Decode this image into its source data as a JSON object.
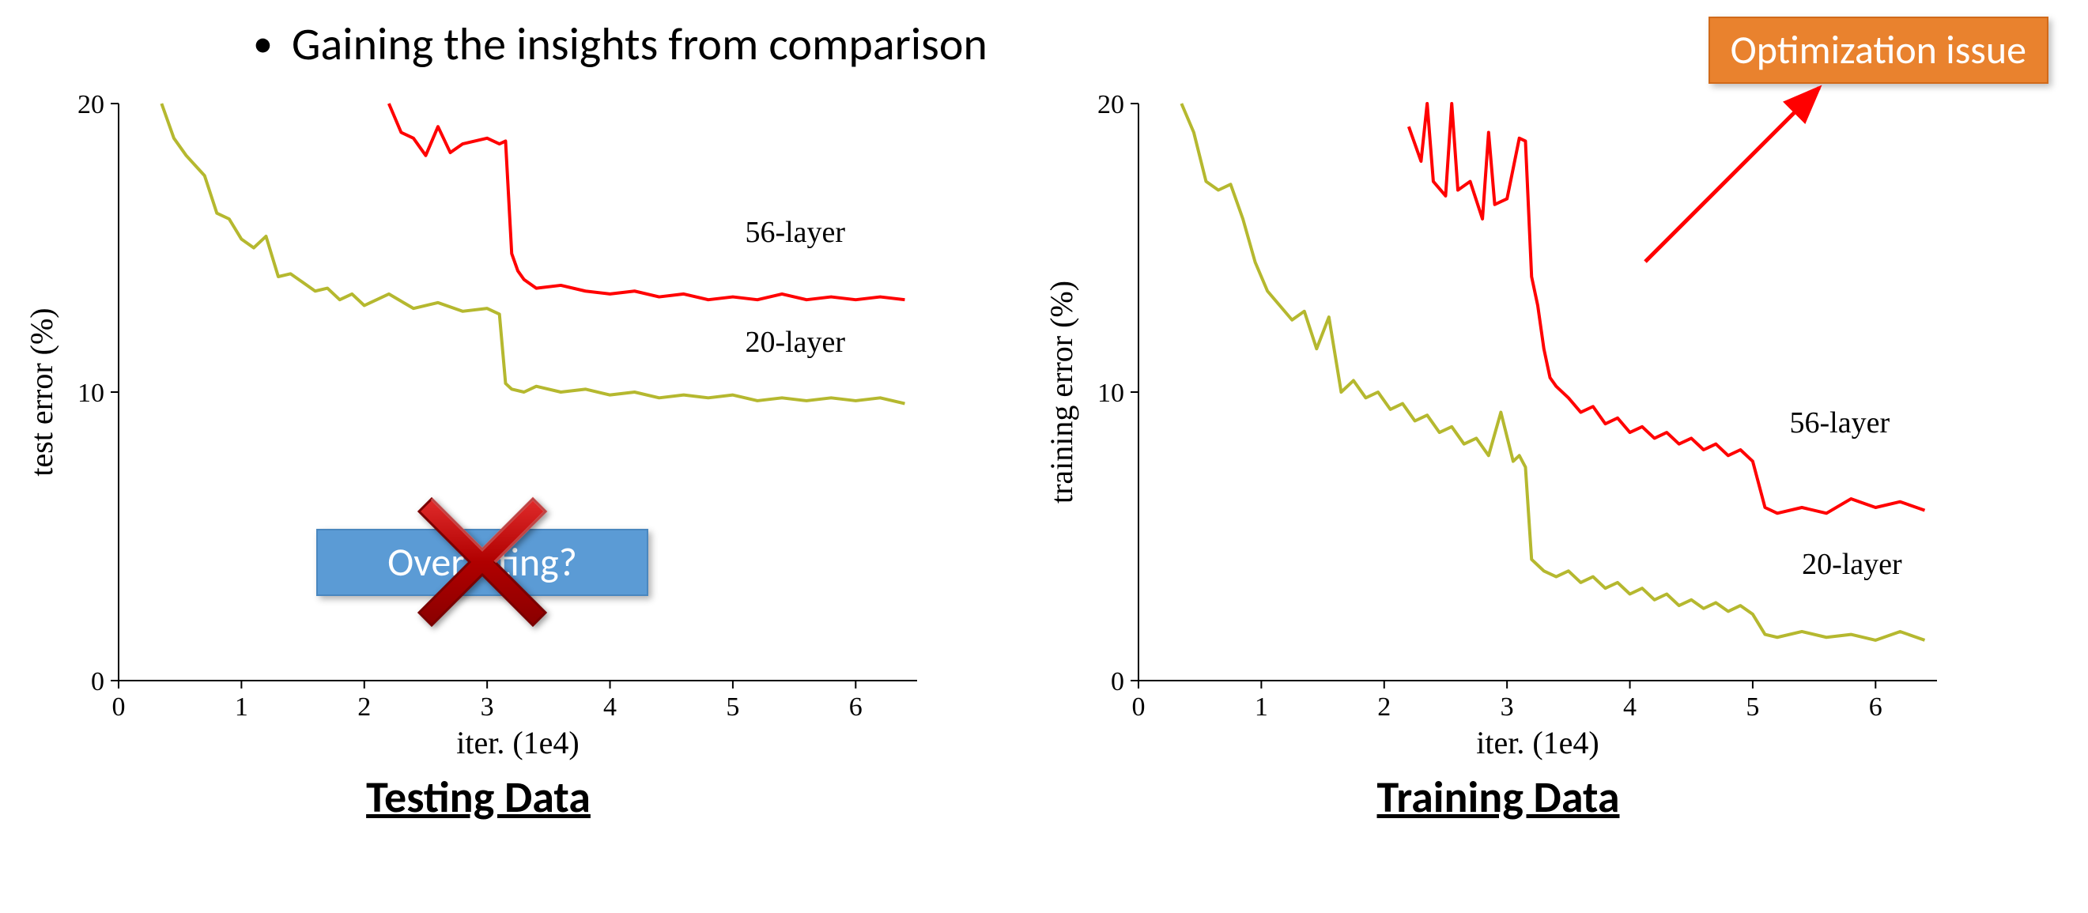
{
  "bullet_text": "Gaining the insights from comparison",
  "callout_text": "Optimization issue",
  "overfit_text": "Overfitting?",
  "colors": {
    "text_black": "#000000",
    "callout_bg": "#e9822e",
    "callout_border": "#d16a1a",
    "callout_text": "#ffffff",
    "overfit_bg": "#5b9bd5",
    "overfit_border": "#4a87bf",
    "overfit_text": "#ffffff",
    "x_mark": "#c00000",
    "arrow": "#ff0000",
    "series_56": "#ff0000",
    "series_20": "#b5b82f",
    "axis": "#000000",
    "background": "#ffffff"
  },
  "left_chart": {
    "type": "line",
    "title": "Testing Data",
    "xlabel": "iter. (1e4)",
    "ylabel": "test error (%)",
    "axis_fontsize": 40,
    "tick_fontsize": 34,
    "xlim": [
      0,
      6.5
    ],
    "ylim": [
      0,
      20
    ],
    "xticks": [
      0,
      1,
      2,
      3,
      4,
      5,
      6
    ],
    "yticks": [
      0,
      10,
      20
    ],
    "series": [
      {
        "name": "56-layer",
        "label": "56-layer",
        "label_pos": {
          "x": 5.1,
          "y": 15.2
        },
        "color": "#ff0000",
        "line_width": 4,
        "x": [
          2.2,
          2.3,
          2.4,
          2.5,
          2.6,
          2.7,
          2.8,
          2.9,
          3.0,
          3.1,
          3.15,
          3.2,
          3.25,
          3.3,
          3.4,
          3.6,
          3.8,
          4.0,
          4.2,
          4.4,
          4.6,
          4.8,
          5.0,
          5.2,
          5.4,
          5.6,
          5.8,
          6.0,
          6.2,
          6.4
        ],
        "y": [
          20,
          19,
          18.8,
          18.2,
          19.2,
          18.3,
          18.6,
          18.7,
          18.8,
          18.6,
          18.7,
          14.8,
          14.2,
          13.9,
          13.6,
          13.7,
          13.5,
          13.4,
          13.5,
          13.3,
          13.4,
          13.2,
          13.3,
          13.2,
          13.4,
          13.2,
          13.3,
          13.2,
          13.3,
          13.2
        ]
      },
      {
        "name": "20-layer",
        "label": "20-layer",
        "label_pos": {
          "x": 5.1,
          "y": 11.4
        },
        "color": "#b5b82f",
        "line_width": 4,
        "x": [
          0.35,
          0.45,
          0.55,
          0.7,
          0.8,
          0.9,
          1.0,
          1.1,
          1.2,
          1.3,
          1.4,
          1.5,
          1.6,
          1.7,
          1.8,
          1.9,
          2.0,
          2.2,
          2.4,
          2.6,
          2.8,
          3.0,
          3.1,
          3.15,
          3.2,
          3.3,
          3.4,
          3.6,
          3.8,
          4.0,
          4.2,
          4.4,
          4.6,
          4.8,
          5.0,
          5.2,
          5.4,
          5.6,
          5.8,
          6.0,
          6.2,
          6.4
        ],
        "y": [
          20,
          18.8,
          18.2,
          17.5,
          16.2,
          16.0,
          15.3,
          15.0,
          15.4,
          14.0,
          14.1,
          13.8,
          13.5,
          13.6,
          13.2,
          13.4,
          13.0,
          13.4,
          12.9,
          13.1,
          12.8,
          12.9,
          12.7,
          10.3,
          10.1,
          10.0,
          10.2,
          10.0,
          10.1,
          9.9,
          10.0,
          9.8,
          9.9,
          9.8,
          9.9,
          9.7,
          9.8,
          9.7,
          9.8,
          9.7,
          9.8,
          9.6
        ]
      }
    ]
  },
  "right_chart": {
    "type": "line",
    "title": "Training Data",
    "xlabel": "iter. (1e4)",
    "ylabel": "training error (%)",
    "axis_fontsize": 40,
    "tick_fontsize": 34,
    "xlim": [
      0,
      6.5
    ],
    "ylim": [
      0,
      20
    ],
    "xticks": [
      0,
      1,
      2,
      3,
      4,
      5,
      6
    ],
    "yticks": [
      0,
      10,
      20
    ],
    "series": [
      {
        "name": "56-layer",
        "label": "56-layer",
        "label_pos": {
          "x": 5.3,
          "y": 8.6
        },
        "color": "#ff0000",
        "line_width": 4,
        "x": [
          2.2,
          2.3,
          2.35,
          2.4,
          2.5,
          2.55,
          2.6,
          2.7,
          2.8,
          2.85,
          2.9,
          3.0,
          3.1,
          3.15,
          3.2,
          3.25,
          3.3,
          3.35,
          3.4,
          3.5,
          3.6,
          3.7,
          3.8,
          3.9,
          4.0,
          4.1,
          4.2,
          4.3,
          4.4,
          4.5,
          4.6,
          4.7,
          4.8,
          4.9,
          5.0,
          5.1,
          5.2,
          5.4,
          5.6,
          5.8,
          6.0,
          6.2,
          6.4
        ],
        "y": [
          19.2,
          18.0,
          20,
          17.3,
          16.8,
          20,
          17.0,
          17.3,
          16.0,
          19.0,
          16.5,
          16.7,
          18.8,
          18.7,
          14.0,
          13.0,
          11.5,
          10.5,
          10.2,
          9.8,
          9.3,
          9.5,
          8.9,
          9.1,
          8.6,
          8.8,
          8.4,
          8.6,
          8.2,
          8.4,
          8.0,
          8.2,
          7.8,
          8.0,
          7.6,
          6.0,
          5.8,
          6.0,
          5.8,
          6.3,
          6.0,
          6.2,
          5.9
        ]
      },
      {
        "name": "20-layer",
        "label": "20-layer",
        "label_pos": {
          "x": 5.4,
          "y": 3.7
        },
        "color": "#b5b82f",
        "line_width": 4,
        "x": [
          0.35,
          0.45,
          0.55,
          0.65,
          0.75,
          0.85,
          0.95,
          1.05,
          1.15,
          1.25,
          1.35,
          1.45,
          1.55,
          1.65,
          1.75,
          1.85,
          1.95,
          2.05,
          2.15,
          2.25,
          2.35,
          2.45,
          2.55,
          2.65,
          2.75,
          2.85,
          2.95,
          3.05,
          3.1,
          3.15,
          3.2,
          3.25,
          3.3,
          3.4,
          3.5,
          3.6,
          3.7,
          3.8,
          3.9,
          4.0,
          4.1,
          4.2,
          4.3,
          4.4,
          4.5,
          4.6,
          4.7,
          4.8,
          4.9,
          5.0,
          5.1,
          5.2,
          5.4,
          5.6,
          5.8,
          6.0,
          6.2,
          6.4
        ],
        "y": [
          20,
          19,
          17.3,
          17.0,
          17.2,
          16.0,
          14.5,
          13.5,
          13.0,
          12.5,
          12.8,
          11.5,
          12.6,
          10.0,
          10.4,
          9.8,
          10.0,
          9.4,
          9.6,
          9.0,
          9.2,
          8.6,
          8.8,
          8.2,
          8.4,
          7.8,
          9.3,
          7.6,
          7.8,
          7.4,
          4.2,
          4.0,
          3.8,
          3.6,
          3.8,
          3.4,
          3.6,
          3.2,
          3.4,
          3.0,
          3.2,
          2.8,
          3.0,
          2.6,
          2.8,
          2.5,
          2.7,
          2.4,
          2.6,
          2.3,
          1.6,
          1.5,
          1.7,
          1.5,
          1.6,
          1.4,
          1.7,
          1.4
        ]
      }
    ]
  },
  "cross_mark": {
    "color": "#c00000",
    "stroke_width": 30
  },
  "arrow": {
    "color": "#ff0000",
    "stroke_width": 5
  }
}
